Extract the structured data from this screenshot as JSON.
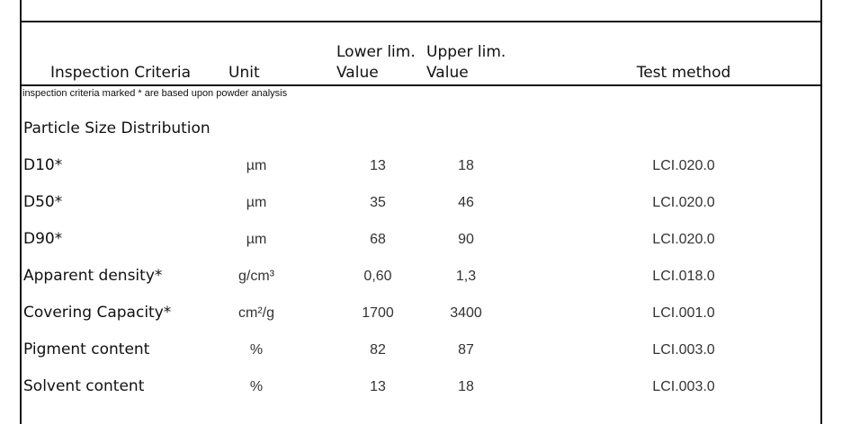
{
  "header": {
    "columns": [
      [
        "Inspection Criteria"
      ],
      [
        "Unit"
      ],
      [
        "Lower lim.",
        "Value"
      ],
      [
        "Upper lim.",
        "Value"
      ],
      [
        "Test method"
      ]
    ]
  },
  "note": "inspection criteria marked * are based upon powder analysis",
  "section": "Particle Size Distribution",
  "table": {
    "rows": [
      [
        "D10*",
        "µm",
        "13",
        "18",
        "LCI.020.0"
      ],
      [
        "D50*",
        "µm",
        "35",
        "46",
        "LCI.020.0"
      ],
      [
        "D90*",
        "µm",
        "68",
        "90",
        "LCI.020.0"
      ],
      [
        "Apparent density*",
        "g/cm³",
        "0,60",
        "1,3",
        "LCI.018.0"
      ],
      [
        "Covering Capacity*",
        "cm²/g",
        "1700",
        "3400",
        "LCI.001.0"
      ],
      [
        "Pigment content",
        "%",
        "82",
        "87",
        "LCI.003.0"
      ],
      [
        "Solvent content",
        "%",
        "13",
        "18",
        "LCI.003.0"
      ]
    ]
  }
}
